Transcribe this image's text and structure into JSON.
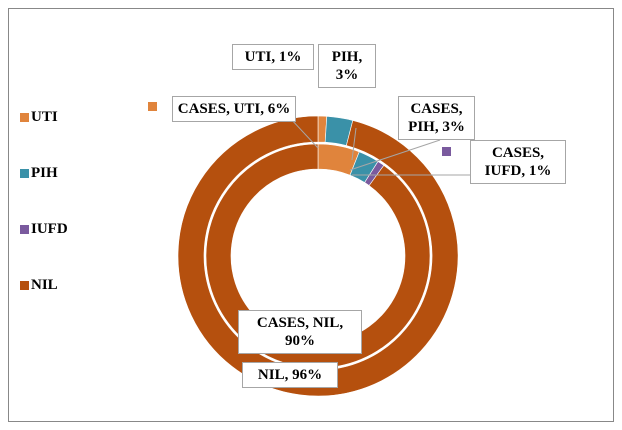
{
  "chart_data": {
    "type": "doughnut",
    "categories": [
      "UTI",
      "PIH",
      "IUFD",
      "NIL"
    ],
    "colors": [
      "#E0843C",
      "#3A91A8",
      "#7A5A9E",
      "#B5500E"
    ],
    "legend": "left",
    "series": [
      {
        "name": "CASES",
        "values": [
          6,
          3,
          1,
          90
        ],
        "value_labels": [
          "CASES, UTI, 6%",
          "CASES, PIH, 3%",
          "CASES, IUFD, 1%",
          "CASES, NIL, 90%"
        ]
      },
      {
        "values": [
          1,
          3,
          null,
          96
        ],
        "value_labels": [
          "UTI, 1%",
          "PIH, 3%",
          null,
          "NIL, 96%"
        ]
      }
    ]
  }
}
